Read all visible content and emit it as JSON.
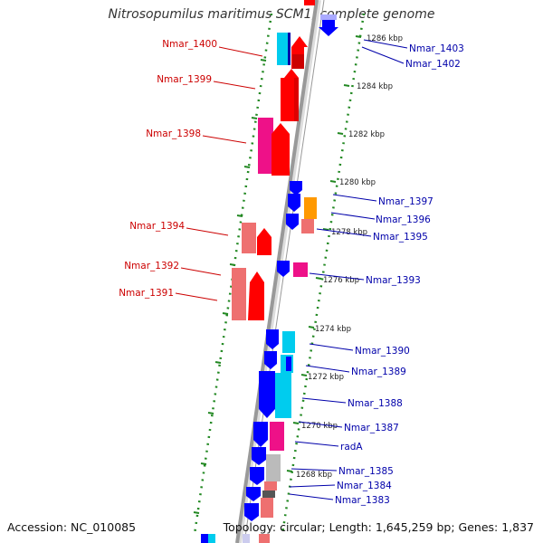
{
  "header": {
    "title": "Nitrosopumilus maritimus SCM1, complete genome"
  },
  "footer": {
    "accession": "Accession: NC_010085",
    "summary": "Topology: circular; Length: 1,645,259 bp; Genes: 1,837"
  },
  "scale_labels": [
    "1286 kbp",
    "1284 kbp",
    "1282 kbp",
    "1280 kbp",
    "1278 kbp",
    "1276 kbp",
    "1274 kbp",
    "1272 kbp",
    "1270 kbp",
    "1268 kbp"
  ],
  "genes_left": [
    "Nmar_1400",
    "Nmar_1399",
    "Nmar_1398",
    "Nmar_1394",
    "Nmar_1392",
    "Nmar_1391"
  ],
  "genes_right": [
    "Nmar_1403",
    "Nmar_1402",
    "Nmar_1397",
    "Nmar_1396",
    "Nmar_1395",
    "Nmar_1393",
    "Nmar_1390",
    "Nmar_1389",
    "Nmar_1388",
    "Nmar_1387",
    "radA",
    "Nmar_1385",
    "Nmar_1384",
    "Nmar_1383"
  ],
  "colors": {
    "left_label": "#cc0000",
    "right_label": "#0000aa",
    "red": "#ff0000",
    "blue": "#0000ff",
    "pink": "#ee7070",
    "magenta": "#ee1188",
    "cyan": "#00ccee",
    "orange": "#ff9900",
    "grey": "#bbbbbb",
    "backbone": "#999999",
    "ring_dots": "#228822"
  }
}
